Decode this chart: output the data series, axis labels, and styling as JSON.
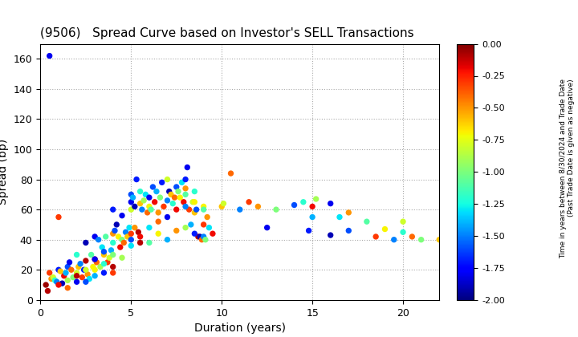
{
  "title": "(9506)   Spread Curve based on Investor's SELL Transactions",
  "xlabel": "Duration (years)",
  "ylabel": "Spread (bp)",
  "colorbar_label": "Time in years between 8/30/2024 and Trade Date\n(Past Trade Date is given as negative)",
  "xlim": [
    0,
    22
  ],
  "ylim": [
    0,
    170
  ],
  "xticks": [
    0,
    5,
    10,
    15,
    20
  ],
  "yticks": [
    0,
    20,
    40,
    60,
    80,
    100,
    120,
    140,
    160
  ],
  "cmap_vmin": -2.0,
  "cmap_vmax": 0.0,
  "cbar_ticks": [
    0.0,
    -0.25,
    -0.5,
    -0.75,
    -1.0,
    -1.25,
    -1.5,
    -1.75,
    -2.0
  ],
  "points": [
    [
      0.5,
      162,
      -1.8
    ],
    [
      0.3,
      10,
      -0.05
    ],
    [
      0.4,
      6,
      -0.1
    ],
    [
      0.5,
      18,
      -0.3
    ],
    [
      0.6,
      14,
      -0.5
    ],
    [
      0.7,
      15,
      -0.8
    ],
    [
      0.8,
      13,
      -1.2
    ],
    [
      0.9,
      12,
      -1.5
    ],
    [
      1.0,
      55,
      -0.3
    ],
    [
      1.0,
      20,
      -1.7
    ],
    [
      1.1,
      19,
      -0.6
    ],
    [
      1.2,
      11,
      -1.9
    ],
    [
      1.3,
      16,
      -0.2
    ],
    [
      1.4,
      18,
      -1.4
    ],
    [
      1.5,
      22,
      -1.6
    ],
    [
      1.6,
      25,
      -1.8
    ],
    [
      1.7,
      20,
      -0.4
    ],
    [
      1.8,
      15,
      -1.0
    ],
    [
      2.0,
      30,
      -1.2
    ],
    [
      2.0,
      18,
      -0.8
    ],
    [
      2.1,
      22,
      -0.6
    ],
    [
      2.2,
      24,
      -1.5
    ],
    [
      2.3,
      15,
      -0.3
    ],
    [
      2.4,
      20,
      -1.7
    ],
    [
      2.5,
      26,
      -0.1
    ],
    [
      2.5,
      38,
      -1.9
    ],
    [
      2.6,
      17,
      -0.5
    ],
    [
      2.7,
      14,
      -1.3
    ],
    [
      2.8,
      30,
      -1.1
    ],
    [
      2.9,
      22,
      -0.7
    ],
    [
      3.0,
      42,
      -1.8
    ],
    [
      3.0,
      27,
      -0.2
    ],
    [
      3.1,
      25,
      -0.4
    ],
    [
      3.2,
      40,
      -1.5
    ],
    [
      3.3,
      22,
      -0.9
    ],
    [
      3.4,
      35,
      -1.3
    ],
    [
      3.5,
      30,
      -0.6
    ],
    [
      3.5,
      18,
      -1.7
    ],
    [
      3.6,
      42,
      -1.1
    ],
    [
      3.7,
      25,
      -0.3
    ],
    [
      3.8,
      28,
      -0.8
    ],
    [
      3.9,
      33,
      -1.4
    ],
    [
      4.0,
      60,
      -1.7
    ],
    [
      4.0,
      44,
      -0.5
    ],
    [
      4.0,
      38,
      -1.2
    ],
    [
      4.1,
      46,
      -1.6
    ],
    [
      4.2,
      50,
      -1.9
    ],
    [
      4.3,
      42,
      -0.7
    ],
    [
      4.4,
      35,
      -0.2
    ],
    [
      4.5,
      40,
      -1.0
    ],
    [
      4.5,
      56,
      -1.8
    ],
    [
      4.6,
      38,
      -0.4
    ],
    [
      4.7,
      45,
      -1.5
    ],
    [
      4.8,
      42,
      -0.6
    ],
    [
      4.9,
      48,
      -1.3
    ],
    [
      5.0,
      65,
      -1.8
    ],
    [
      5.0,
      70,
      -1.6
    ],
    [
      5.0,
      60,
      -0.8
    ],
    [
      5.0,
      44,
      -0.3
    ],
    [
      5.1,
      68,
      -1.4
    ],
    [
      5.2,
      62,
      -1.9
    ],
    [
      5.2,
      48,
      -0.5
    ],
    [
      5.3,
      80,
      -1.7
    ],
    [
      5.4,
      45,
      -0.1
    ],
    [
      5.5,
      64,
      -0.6
    ],
    [
      5.5,
      72,
      -1.2
    ],
    [
      5.6,
      60,
      -1.5
    ],
    [
      5.7,
      66,
      -0.9
    ],
    [
      5.8,
      70,
      -1.3
    ],
    [
      5.9,
      58,
      -0.4
    ],
    [
      6.0,
      62,
      -0.7
    ],
    [
      6.0,
      68,
      -1.8
    ],
    [
      6.1,
      60,
      -1.1
    ],
    [
      6.2,
      75,
      -1.6
    ],
    [
      6.3,
      65,
      -0.2
    ],
    [
      6.4,
      72,
      -1.4
    ],
    [
      6.5,
      58,
      -0.5
    ],
    [
      6.6,
      68,
      -1.0
    ],
    [
      6.7,
      78,
      -1.7
    ],
    [
      6.8,
      62,
      -0.3
    ],
    [
      7.0,
      80,
      -0.8
    ],
    [
      7.0,
      66,
      -1.5
    ],
    [
      7.1,
      72,
      -1.9
    ],
    [
      7.2,
      70,
      -0.6
    ],
    [
      7.3,
      64,
      -1.2
    ],
    [
      7.4,
      68,
      -0.4
    ],
    [
      7.5,
      75,
      -1.6
    ],
    [
      7.6,
      72,
      -1.0
    ],
    [
      7.7,
      68,
      -0.7
    ],
    [
      7.8,
      78,
      -1.3
    ],
    [
      7.9,
      65,
      -0.2
    ],
    [
      8.0,
      80,
      -1.7
    ],
    [
      8.0,
      74,
      -0.5
    ],
    [
      8.0,
      70,
      -1.1
    ],
    [
      8.1,
      88,
      -1.8
    ],
    [
      8.2,
      60,
      -0.3
    ],
    [
      8.3,
      50,
      -1.4
    ],
    [
      8.4,
      65,
      -0.8
    ],
    [
      8.5,
      72,
      -1.2
    ],
    [
      8.5,
      58,
      -0.6
    ],
    [
      8.6,
      60,
      -1.6
    ],
    [
      8.7,
      42,
      -0.1
    ],
    [
      8.8,
      42,
      -1.9
    ],
    [
      8.9,
      40,
      -0.4
    ],
    [
      9.0,
      42,
      -1.5
    ],
    [
      9.0,
      62,
      -0.7
    ],
    [
      9.1,
      40,
      -1.0
    ],
    [
      9.2,
      55,
      -0.5
    ],
    [
      9.3,
      48,
      -1.3
    ],
    [
      9.5,
      44,
      -0.2
    ],
    [
      10.0,
      62,
      -0.6
    ],
    [
      10.1,
      64,
      -0.8
    ],
    [
      10.5,
      84,
      -0.4
    ],
    [
      11.0,
      60,
      -1.5
    ],
    [
      11.5,
      65,
      -0.3
    ],
    [
      12.0,
      62,
      -0.5
    ],
    [
      12.5,
      48,
      -1.8
    ],
    [
      13.0,
      60,
      -1.0
    ],
    [
      14.0,
      63,
      -1.6
    ],
    [
      14.5,
      65,
      -1.2
    ],
    [
      14.8,
      46,
      -1.7
    ],
    [
      15.0,
      62,
      -0.2
    ],
    [
      15.0,
      55,
      -1.4
    ],
    [
      15.2,
      67,
      -0.9
    ],
    [
      16.0,
      64,
      -1.8
    ],
    [
      16.0,
      43,
      -1.9
    ],
    [
      16.5,
      55,
      -1.3
    ],
    [
      17.0,
      58,
      -0.5
    ],
    [
      17.0,
      46,
      -1.6
    ],
    [
      18.0,
      52,
      -1.1
    ],
    [
      18.5,
      42,
      -0.3
    ],
    [
      19.0,
      47,
      -0.7
    ],
    [
      19.5,
      40,
      -1.5
    ],
    [
      20.0,
      52,
      -0.8
    ],
    [
      20.0,
      45,
      -1.2
    ],
    [
      20.5,
      42,
      -0.4
    ],
    [
      21.0,
      40,
      -1.0
    ],
    [
      22.0,
      40,
      -0.6
    ],
    [
      3.0,
      27,
      -1.8
    ],
    [
      3.5,
      32,
      -1.6
    ],
    [
      4.0,
      22,
      -0.1
    ],
    [
      4.5,
      28,
      -0.9
    ],
    [
      5.0,
      36,
      -1.3
    ],
    [
      5.5,
      42,
      -0.2
    ],
    [
      6.0,
      38,
      -1.1
    ],
    [
      6.5,
      44,
      -0.7
    ],
    [
      7.0,
      40,
      -1.4
    ],
    [
      7.5,
      46,
      -0.5
    ],
    [
      8.0,
      48,
      -0.9
    ],
    [
      8.5,
      44,
      -1.7
    ],
    [
      9.0,
      50,
      -0.3
    ],
    [
      1.5,
      13,
      -0.9
    ],
    [
      2.0,
      16,
      -0.1
    ],
    [
      2.5,
      12,
      -1.6
    ],
    [
      3.0,
      20,
      -0.7
    ],
    [
      3.5,
      24,
      -1.2
    ],
    [
      4.0,
      18,
      -0.3
    ],
    [
      1.0,
      10,
      -0.2
    ],
    [
      1.5,
      8,
      -0.4
    ],
    [
      2.0,
      12,
      -1.8
    ],
    [
      2.5,
      20,
      -0.8
    ],
    [
      3.0,
      16,
      -1.4
    ],
    [
      4.0,
      30,
      -1.0
    ],
    [
      5.0,
      40,
      -1.6
    ],
    [
      5.5,
      38,
      -0.1
    ],
    [
      6.0,
      48,
      -1.3
    ],
    [
      6.5,
      52,
      -0.4
    ],
    [
      7.0,
      55,
      -1.8
    ],
    [
      7.5,
      60,
      -0.2
    ],
    [
      8.0,
      62,
      -1.5
    ],
    [
      8.5,
      65,
      -0.7
    ],
    [
      9.0,
      60,
      -1.1
    ]
  ]
}
